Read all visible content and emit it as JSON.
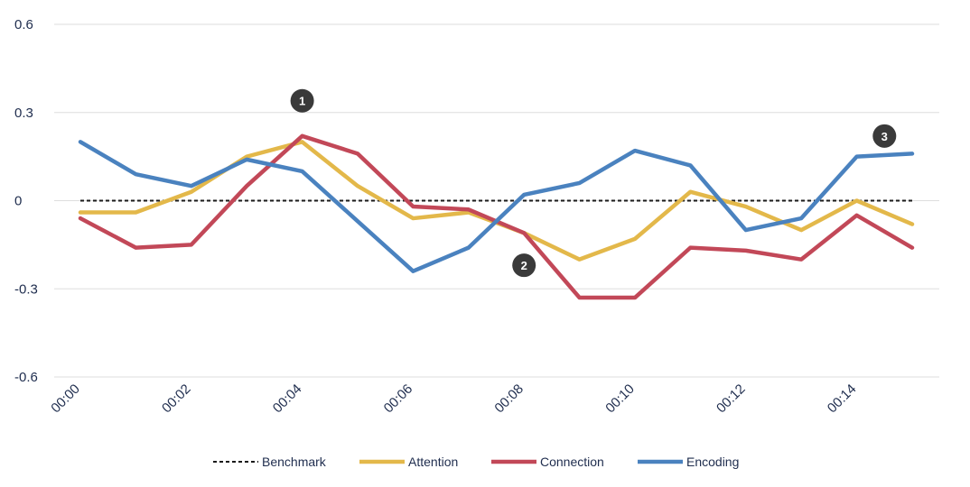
{
  "chart_data": {
    "type": "line",
    "title": "",
    "xlabel": "",
    "ylabel": "",
    "ylim": [
      -0.6,
      0.6
    ],
    "y_ticks": [
      "0.6",
      "0.3",
      "0",
      "-0.3",
      "-0.6"
    ],
    "y_tick_values": [
      0.6,
      0.3,
      0,
      -0.3,
      -0.6
    ],
    "x": [
      "00:00",
      "00:01",
      "00:02",
      "00:03",
      "00:04",
      "00:05",
      "00:06",
      "00:07",
      "00:08",
      "00:09",
      "00:10",
      "00:11",
      "00:12",
      "00:13",
      "00:14",
      "00:15"
    ],
    "x_tick_labels": [
      "00:00",
      "00:02",
      "00:04",
      "00:06",
      "00:08",
      "00:10",
      "00:12",
      "00:14"
    ],
    "series": [
      {
        "name": "Benchmark",
        "color": "#1a1a1a",
        "style": "dashed",
        "values": [
          0,
          0,
          0,
          0,
          0,
          0,
          0,
          0,
          0,
          0,
          0,
          0,
          0,
          0,
          0,
          0
        ]
      },
      {
        "name": "Attention",
        "color": "#e3b84a",
        "style": "solid",
        "values": [
          -0.04,
          -0.04,
          0.03,
          0.15,
          0.2,
          0.05,
          -0.06,
          -0.04,
          -0.11,
          -0.2,
          -0.13,
          0.03,
          -0.02,
          -0.1,
          0.0,
          -0.08
        ]
      },
      {
        "name": "Connection",
        "color": "#c24858",
        "style": "solid",
        "values": [
          -0.06,
          -0.16,
          -0.15,
          0.05,
          0.22,
          0.16,
          -0.02,
          -0.03,
          -0.11,
          -0.33,
          -0.33,
          -0.16,
          -0.17,
          -0.2,
          -0.05,
          -0.16
        ]
      },
      {
        "name": "Encoding",
        "color": "#4a82bf",
        "style": "solid",
        "values": [
          0.2,
          0.09,
          0.05,
          0.14,
          0.1,
          -0.07,
          -0.24,
          -0.16,
          0.02,
          0.06,
          0.17,
          0.12,
          -0.1,
          -0.06,
          0.15,
          0.16
        ]
      }
    ],
    "annotations": [
      {
        "label": "1",
        "x": 4,
        "y": 0.34
      },
      {
        "label": "2",
        "x": 8,
        "y": -0.22
      },
      {
        "label": "3",
        "x": 14.5,
        "y": 0.22
      }
    ],
    "annotation_color": "#3a3a3a",
    "grid": true,
    "legend": "bottom"
  }
}
